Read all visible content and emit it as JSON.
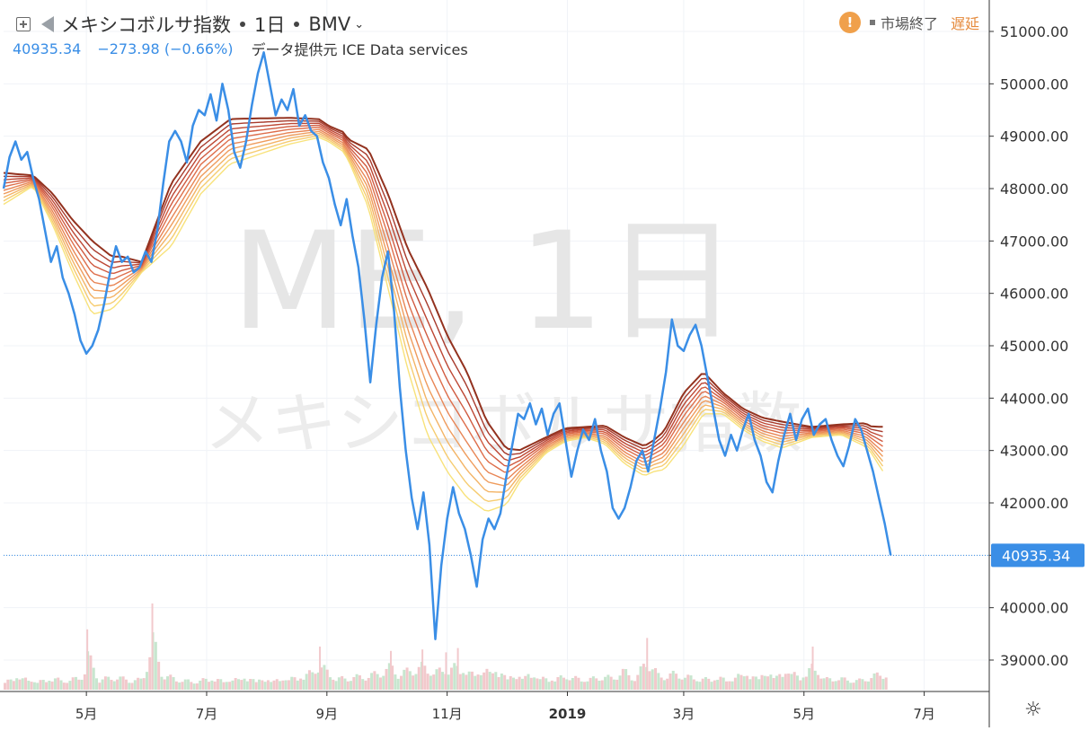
{
  "header": {
    "title": "メキシコボルサ指数",
    "interval": "1日",
    "exchange": "BMV",
    "price": "40935.34",
    "change": "−273.98 (−0.66%)",
    "source": "データ提供元 ICE Data services",
    "status_closed": "市場終了",
    "status_delayed": "遅延",
    "warning_glyph": "!"
  },
  "watermark": {
    "line1": "ME, 1日",
    "line2": "メキシコボルサ指数"
  },
  "colors": {
    "price_line": "#3a8ee6",
    "ribbon": [
      "#f8e27a",
      "#f6cc70",
      "#f3b466",
      "#ef9c5d",
      "#e88555",
      "#de6e4b",
      "#d05a40",
      "#bd4734",
      "#a83a2c",
      "#93321f"
    ],
    "vol_up": "#c8e6cf",
    "vol_down": "#f2c9cc"
  },
  "chart_data": {
    "type": "line",
    "last_value_label": "40935.34",
    "y_ticks": [
      "51000.00",
      "50000.00",
      "49000.00",
      "48000.00",
      "47000.00",
      "46000.00",
      "45000.00",
      "44000.00",
      "43000.00",
      "42000.00",
      "41000.00",
      "40000.00",
      "39000.00"
    ],
    "y_tick_values": [
      51000,
      50000,
      49000,
      48000,
      47000,
      46000,
      45000,
      44000,
      43000,
      42000,
      41000,
      40000,
      39000
    ],
    "ylim": [
      38400,
      51600
    ],
    "x_ticks": [
      {
        "label": "5月",
        "pos": 42
      },
      {
        "label": "7月",
        "pos": 103
      },
      {
        "label": "9月",
        "pos": 164
      },
      {
        "label": "11月",
        "pos": 225
      },
      {
        "label": "2019",
        "pos": 286
      },
      {
        "label": "3月",
        "pos": 345
      },
      {
        "label": "5月",
        "pos": 406
      },
      {
        "label": "7月",
        "pos": 467
      }
    ],
    "xlim": [
      0,
      500
    ],
    "price_series": [
      [
        0,
        48000
      ],
      [
        3,
        48600
      ],
      [
        6,
        48900
      ],
      [
        9,
        48550
      ],
      [
        12,
        48700
      ],
      [
        15,
        48200
      ],
      [
        18,
        47800
      ],
      [
        21,
        47200
      ],
      [
        24,
        46600
      ],
      [
        27,
        46900
      ],
      [
        30,
        46300
      ],
      [
        33,
        46000
      ],
      [
        36,
        45600
      ],
      [
        39,
        45100
      ],
      [
        42,
        44850
      ],
      [
        45,
        45000
      ],
      [
        48,
        45300
      ],
      [
        51,
        45800
      ],
      [
        54,
        46400
      ],
      [
        57,
        46900
      ],
      [
        60,
        46600
      ],
      [
        63,
        46700
      ],
      [
        66,
        46400
      ],
      [
        69,
        46500
      ],
      [
        72,
        46800
      ],
      [
        75,
        46600
      ],
      [
        78,
        47200
      ],
      [
        81,
        48100
      ],
      [
        84,
        48900
      ],
      [
        87,
        49100
      ],
      [
        90,
        48900
      ],
      [
        93,
        48500
      ],
      [
        96,
        49200
      ],
      [
        99,
        49500
      ],
      [
        102,
        49400
      ],
      [
        105,
        49800
      ],
      [
        108,
        49300
      ],
      [
        111,
        50000
      ],
      [
        114,
        49500
      ],
      [
        117,
        48700
      ],
      [
        120,
        48400
      ],
      [
        123,
        48900
      ],
      [
        126,
        49600
      ],
      [
        129,
        50200
      ],
      [
        132,
        50600
      ],
      [
        135,
        50000
      ],
      [
        138,
        49400
      ],
      [
        141,
        49700
      ],
      [
        144,
        49500
      ],
      [
        147,
        49900
      ],
      [
        150,
        49200
      ],
      [
        153,
        49400
      ],
      [
        156,
        49100
      ],
      [
        159,
        49000
      ],
      [
        162,
        48500
      ],
      [
        165,
        48200
      ],
      [
        168,
        47700
      ],
      [
        171,
        47300
      ],
      [
        174,
        47800
      ],
      [
        177,
        47100
      ],
      [
        180,
        46500
      ],
      [
        183,
        45500
      ],
      [
        186,
        44300
      ],
      [
        189,
        45400
      ],
      [
        192,
        46300
      ],
      [
        195,
        46800
      ],
      [
        198,
        45700
      ],
      [
        201,
        44200
      ],
      [
        204,
        43000
      ],
      [
        207,
        42100
      ],
      [
        210,
        41500
      ],
      [
        213,
        42200
      ],
      [
        216,
        41200
      ],
      [
        219,
        39400
      ],
      [
        222,
        40800
      ],
      [
        225,
        41700
      ],
      [
        228,
        42300
      ],
      [
        231,
        41800
      ],
      [
        234,
        41500
      ],
      [
        237,
        41000
      ],
      [
        240,
        40400
      ],
      [
        243,
        41300
      ],
      [
        246,
        41700
      ],
      [
        249,
        41500
      ],
      [
        252,
        41800
      ],
      [
        255,
        42500
      ],
      [
        258,
        43100
      ],
      [
        261,
        43700
      ],
      [
        264,
        43600
      ],
      [
        267,
        43900
      ],
      [
        270,
        43500
      ],
      [
        273,
        43800
      ],
      [
        276,
        43300
      ],
      [
        279,
        43700
      ],
      [
        282,
        43900
      ],
      [
        285,
        43200
      ],
      [
        288,
        42500
      ],
      [
        291,
        43000
      ],
      [
        294,
        43400
      ],
      [
        297,
        43200
      ],
      [
        300,
        43600
      ],
      [
        303,
        43000
      ],
      [
        306,
        42600
      ],
      [
        309,
        41900
      ],
      [
        312,
        41700
      ],
      [
        315,
        41900
      ],
      [
        318,
        42300
      ],
      [
        321,
        42800
      ],
      [
        324,
        43000
      ],
      [
        327,
        42600
      ],
      [
        330,
        43200
      ],
      [
        333,
        43800
      ],
      [
        336,
        44500
      ],
      [
        339,
        45500
      ],
      [
        342,
        45000
      ],
      [
        345,
        44900
      ],
      [
        348,
        45200
      ],
      [
        351,
        45400
      ],
      [
        354,
        45000
      ],
      [
        357,
        44400
      ],
      [
        360,
        43800
      ],
      [
        363,
        43200
      ],
      [
        366,
        42900
      ],
      [
        369,
        43300
      ],
      [
        372,
        43000
      ],
      [
        375,
        43400
      ],
      [
        378,
        43700
      ],
      [
        381,
        43200
      ],
      [
        384,
        42900
      ],
      [
        387,
        42400
      ],
      [
        390,
        42200
      ],
      [
        393,
        42800
      ],
      [
        396,
        43300
      ],
      [
        399,
        43700
      ],
      [
        402,
        43200
      ],
      [
        405,
        43600
      ],
      [
        408,
        43800
      ],
      [
        411,
        43300
      ],
      [
        414,
        43500
      ],
      [
        417,
        43600
      ],
      [
        420,
        43200
      ],
      [
        423,
        42900
      ],
      [
        426,
        42700
      ],
      [
        429,
        43100
      ],
      [
        432,
        43600
      ],
      [
        435,
        43400
      ],
      [
        438,
        43000
      ],
      [
        441,
        42600
      ],
      [
        444,
        42100
      ],
      [
        447,
        41600
      ],
      [
        450,
        41000
      ]
    ],
    "ribbon": {
      "offsets": [
        -1.0,
        -0.78,
        -0.56,
        -0.34,
        -0.12,
        0.12,
        0.34,
        0.56,
        0.78,
        1.0
      ],
      "center": [
        [
          0,
          48000
        ],
        [
          15,
          48150
        ],
        [
          25,
          47600
        ],
        [
          35,
          46900
        ],
        [
          45,
          46300
        ],
        [
          55,
          46200
        ],
        [
          70,
          46500
        ],
        [
          85,
          47500
        ],
        [
          100,
          48400
        ],
        [
          115,
          48900
        ],
        [
          130,
          49000
        ],
        [
          145,
          49100
        ],
        [
          160,
          49150
        ],
        [
          172,
          48900
        ],
        [
          185,
          48200
        ],
        [
          195,
          47000
        ],
        [
          205,
          45700
        ],
        [
          215,
          44700
        ],
        [
          225,
          43900
        ],
        [
          235,
          43300
        ],
        [
          245,
          42700
        ],
        [
          255,
          42500
        ],
        [
          265,
          42800
        ],
        [
          275,
          43100
        ],
        [
          285,
          43300
        ],
        [
          295,
          43350
        ],
        [
          305,
          43300
        ],
        [
          315,
          43000
        ],
        [
          325,
          42800
        ],
        [
          335,
          43000
        ],
        [
          345,
          43600
        ],
        [
          355,
          44100
        ],
        [
          365,
          43900
        ],
        [
          375,
          43600
        ],
        [
          385,
          43400
        ],
        [
          395,
          43300
        ],
        [
          410,
          43350
        ],
        [
          425,
          43400
        ],
        [
          437,
          43300
        ],
        [
          447,
          43000
        ]
      ],
      "spread": [
        [
          0,
          300
        ],
        [
          15,
          100
        ],
        [
          35,
          500
        ],
        [
          45,
          700
        ],
        [
          60,
          400
        ],
        [
          70,
          100
        ],
        [
          85,
          600
        ],
        [
          100,
          500
        ],
        [
          120,
          400
        ],
        [
          145,
          250
        ],
        [
          165,
          150
        ],
        [
          175,
          200
        ],
        [
          195,
          900
        ],
        [
          215,
          1400
        ],
        [
          235,
          1200
        ],
        [
          250,
          700
        ],
        [
          262,
          300
        ],
        [
          275,
          150
        ],
        [
          295,
          100
        ],
        [
          315,
          250
        ],
        [
          330,
          300
        ],
        [
          345,
          500
        ],
        [
          355,
          400
        ],
        [
          365,
          200
        ],
        [
          375,
          200
        ],
        [
          395,
          250
        ],
        [
          410,
          100
        ],
        [
          425,
          100
        ],
        [
          440,
          250
        ],
        [
          447,
          450
        ]
      ]
    },
    "volume": {
      "max": 100,
      "values": [
        [
          0,
          12
        ],
        [
          8,
          16
        ],
        [
          16,
          10
        ],
        [
          24,
          14
        ],
        [
          32,
          11
        ],
        [
          40,
          17
        ],
        [
          42,
          42
        ],
        [
          48,
          12
        ],
        [
          56,
          15
        ],
        [
          64,
          11
        ],
        [
          70,
          12
        ],
        [
          75,
          60
        ],
        [
          80,
          18
        ],
        [
          88,
          12
        ],
        [
          96,
          10
        ],
        [
          104,
          14
        ],
        [
          112,
          11
        ],
        [
          120,
          15
        ],
        [
          128,
          13
        ],
        [
          136,
          12
        ],
        [
          144,
          14
        ],
        [
          152,
          17
        ],
        [
          160,
          30
        ],
        [
          168,
          13
        ],
        [
          176,
          15
        ],
        [
          184,
          16
        ],
        [
          190,
          20
        ],
        [
          196,
          27
        ],
        [
          200,
          18
        ],
        [
          206,
          24
        ],
        [
          212,
          28
        ],
        [
          218,
          21
        ],
        [
          224,
          26
        ],
        [
          230,
          29
        ],
        [
          236,
          20
        ],
        [
          242,
          23
        ],
        [
          248,
          25
        ],
        [
          254,
          18
        ],
        [
          260,
          16
        ],
        [
          266,
          19
        ],
        [
          272,
          15
        ],
        [
          278,
          13
        ],
        [
          284,
          17
        ],
        [
          290,
          14
        ],
        [
          296,
          12
        ],
        [
          302,
          16
        ],
        [
          308,
          14
        ],
        [
          314,
          22
        ],
        [
          320,
          13
        ],
        [
          326,
          36
        ],
        [
          332,
          15
        ],
        [
          338,
          19
        ],
        [
          344,
          17
        ],
        [
          350,
          14
        ],
        [
          356,
          13
        ],
        [
          362,
          15
        ],
        [
          368,
          12
        ],
        [
          374,
          21
        ],
        [
          380,
          16
        ],
        [
          386,
          20
        ],
        [
          392,
          18
        ],
        [
          398,
          24
        ],
        [
          404,
          15
        ],
        [
          410,
          30
        ],
        [
          416,
          13
        ],
        [
          422,
          14
        ],
        [
          428,
          12
        ],
        [
          434,
          11
        ],
        [
          440,
          16
        ],
        [
          446,
          19
        ]
      ]
    }
  }
}
